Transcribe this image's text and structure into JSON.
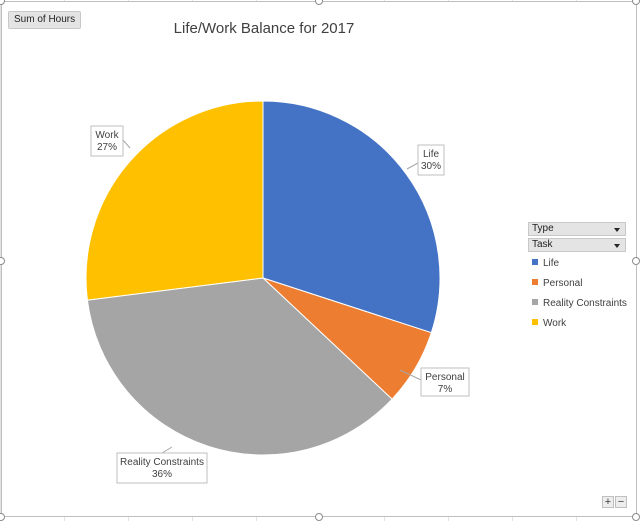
{
  "field_button": "Sum of Hours",
  "filters": [
    {
      "label": "Type"
    },
    {
      "label": "Task"
    }
  ],
  "chart_data": {
    "type": "pie",
    "title": "Life/Work Balance for 2017",
    "categories": [
      "Life",
      "Personal",
      "Reality Constraints",
      "Work"
    ],
    "values": [
      30,
      7,
      36,
      27
    ],
    "data_labels": [
      "30%",
      "7%",
      "36%",
      "27%"
    ],
    "colors": [
      "#4472C4",
      "#ED7D31",
      "#A5A5A5",
      "#FFC000"
    ],
    "legend": {
      "placement": "right",
      "entries": [
        "Life",
        "Personal",
        "Reality Constraints",
        "Work"
      ]
    }
  },
  "zoom": {
    "plus": "+",
    "minus": "−"
  }
}
